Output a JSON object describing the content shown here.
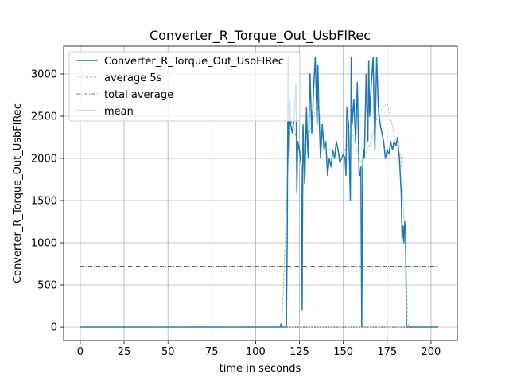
{
  "chart_data": {
    "type": "line",
    "title": "Converter_R_Torque_Out_UsbFlRec",
    "xlabel": "time in seconds",
    "ylabel": "Converter_R_Torque_Out_UsbFlRec",
    "xlim": [
      -9.5,
      215
    ],
    "ylim": [
      -160,
      3330
    ],
    "xticks": [
      0,
      25,
      50,
      75,
      100,
      125,
      150,
      175,
      200
    ],
    "yticks": [
      0,
      500,
      1000,
      1500,
      2000,
      2500,
      3000
    ],
    "grid": true,
    "legend_position": "top-left",
    "series": [
      {
        "name": "Converter_R_Torque_Out_UsbFlRec",
        "style": "solid",
        "color": "#1f77b4",
        "x": [
          0,
          114,
          114.5,
          115,
          117.5,
          118,
          118.5,
          119,
          119.5,
          120,
          121,
          122,
          123,
          123.5,
          124,
          125,
          126,
          126.5,
          127,
          128,
          129,
          129.5,
          130,
          131,
          132,
          133,
          134,
          135,
          135.5,
          136,
          137,
          138,
          139,
          140,
          141,
          142,
          143,
          144,
          145,
          146,
          147,
          148,
          149,
          150,
          151,
          151.5,
          152,
          153,
          154,
          154.5,
          155,
          156,
          157,
          158,
          159,
          159.5,
          160,
          160.5,
          161,
          161.5,
          162,
          163,
          164,
          164.5,
          165,
          166,
          167,
          168,
          169,
          170,
          171,
          172,
          173,
          174,
          175,
          176,
          177,
          178,
          179,
          180,
          181,
          181.5,
          182,
          182.5,
          183,
          183.5,
          184,
          184.5,
          185,
          185.5,
          186,
          187,
          190,
          204
        ],
        "y": [
          0,
          0,
          40,
          0,
          0,
          1000,
          3200,
          2000,
          2700,
          2400,
          2300,
          2500,
          2900,
          1600,
          2200,
          2100,
          1900,
          200,
          2400,
          1700,
          2600,
          2200,
          2000,
          3000,
          2300,
          2800,
          3200,
          2400,
          3100,
          2600,
          2000,
          2400,
          2100,
          2200,
          1800,
          2000,
          1900,
          2100,
          2000,
          2200,
          2100,
          1950,
          2000,
          2050,
          2000,
          1800,
          2600,
          2400,
          1500,
          3200,
          2400,
          2700,
          2200,
          2900,
          1800,
          1800,
          1900,
          0,
          1900,
          2100,
          2000,
          3000,
          2200,
          3150,
          2500,
          2900,
          3200,
          2100,
          3200,
          2600,
          2400,
          2300,
          2200,
          2000,
          2100,
          2050,
          2200,
          2100,
          2200,
          2150,
          2250,
          2100,
          2000,
          1800,
          1600,
          1050,
          1200,
          1000,
          1250,
          1100,
          0,
          0,
          0,
          0
        ]
      },
      {
        "name": "average 5s",
        "style": "dotted",
        "color": "#2ca02c",
        "x": [
          0,
          112,
          115,
          118,
          120,
          122,
          125,
          130,
          135,
          140,
          145,
          150,
          155,
          160,
          165,
          170,
          175,
          180,
          183,
          185,
          187,
          204
        ],
        "y": [
          0,
          0,
          0,
          1700,
          2450,
          2350,
          2050,
          2250,
          2650,
          2150,
          2050,
          2050,
          2300,
          1950,
          2150,
          2550,
          2650,
          2200,
          2000,
          1100,
          0,
          0
        ]
      },
      {
        "name": "total average",
        "style": "dashdot",
        "color": "#000000",
        "x": [
          0,
          204
        ],
        "y": [
          720,
          720
        ]
      },
      {
        "name": "mean",
        "style": "dashed",
        "color": "#000000",
        "x": [
          0,
          204
        ],
        "y": [
          0,
          0
        ]
      }
    ]
  }
}
